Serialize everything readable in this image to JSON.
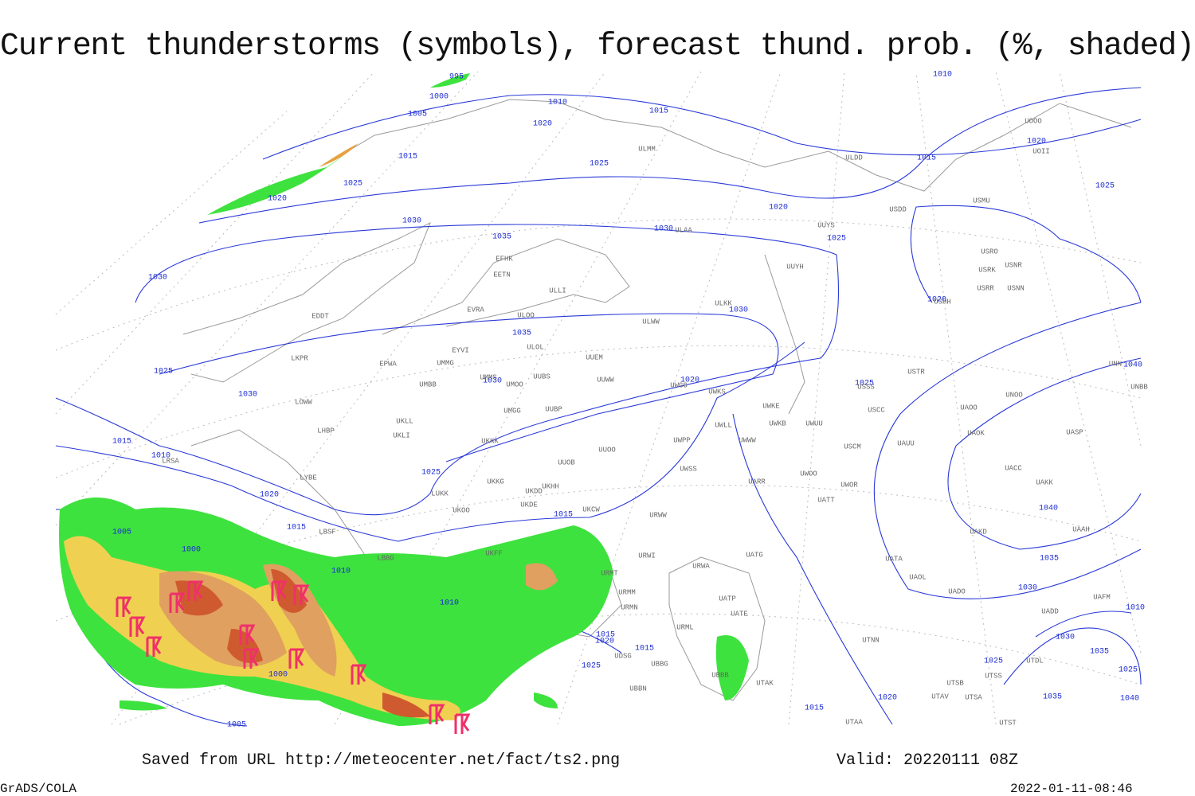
{
  "header": {
    "title": "Current thunderstorms (symbols), forecast thund. prob. (%, shaded)"
  },
  "footer": {
    "saved": "Saved from URL http://meteocenter.net/fact/ts2.png",
    "valid": "Valid: 20220111 08Z",
    "software": "GrADS/COLA",
    "timestamp": "2022-01-11-08:46"
  },
  "isobar_labels": [
    995,
    1000,
    1005,
    1010,
    1020,
    1015,
    1015,
    1025,
    1025,
    1020,
    1030,
    1035,
    1030,
    1020,
    1025,
    1015,
    1020,
    1025,
    1010,
    1030,
    1035,
    1030,
    1020,
    1025,
    1030,
    1030,
    1020,
    1025,
    1015,
    1010,
    1025,
    1020,
    1015,
    1015,
    1005,
    1000,
    1010,
    1010,
    1035,
    1030,
    1040,
    1040,
    1015,
    1020,
    1015,
    1025,
    1000,
    1020,
    1025,
    1015,
    1030,
    1035,
    1025,
    1035,
    1040,
    1005,
    1010
  ],
  "stations": [
    "ULDD",
    "ULMM",
    "USDD",
    "USMU",
    "UOOO",
    "UOII",
    "USRO",
    "USRK",
    "USNR",
    "USRR",
    "USNN",
    "USHH",
    "UUYS",
    "ULAA",
    "UUYH",
    "ULKK",
    "EFHK",
    "EETN",
    "ULLI",
    "EVRA",
    "ULOO",
    "EDDT",
    "ULWW",
    "ULOL",
    "EYVI",
    "UUEM",
    "LKPR",
    "EPWA",
    "UMMG",
    "UMMS",
    "UUBS",
    "UMOO",
    "UUWW",
    "UMBB",
    "UWGG",
    "UWKS",
    "USSS",
    "USTR",
    "LOWW",
    "UWKE",
    "UWKB",
    "UWUU",
    "UUBP",
    "UMGG",
    "UKLL",
    "LHBP",
    "UKLI",
    "UKKK",
    "UWLL",
    "UWWW",
    "UWPP",
    "USCC",
    "USCM",
    "UAUU",
    "UAOO",
    "UAOK",
    "UASP",
    "UNBB",
    "UNOO",
    "UNN",
    "LYBE",
    "UUOO",
    "UUOB",
    "UWSS",
    "UACC",
    "UAKK",
    "UWOO",
    "UWOR",
    "UARR",
    "LUKK",
    "UKHH",
    "UKKG",
    "UKDD",
    "UKDE",
    "UKOO",
    "UKCW",
    "URWW",
    "UATT",
    "URWI",
    "UATG",
    "UAKD",
    "UAAH",
    "LBSF",
    "LBBG",
    "UKFF",
    "URMT",
    "URWA",
    "UATA",
    "UAOL",
    "UADO",
    "UAFM",
    "URMM",
    "URMN",
    "UATE",
    "UATP",
    "UADD",
    "URML",
    "UTNN",
    "UTDL",
    "UBBB",
    "UTAK",
    "UTSB",
    "UTSS",
    "UTAV",
    "UTSA",
    "UTAA",
    "UTST",
    "UBBG",
    "UDSG",
    "UBBN",
    "LRSA"
  ]
}
